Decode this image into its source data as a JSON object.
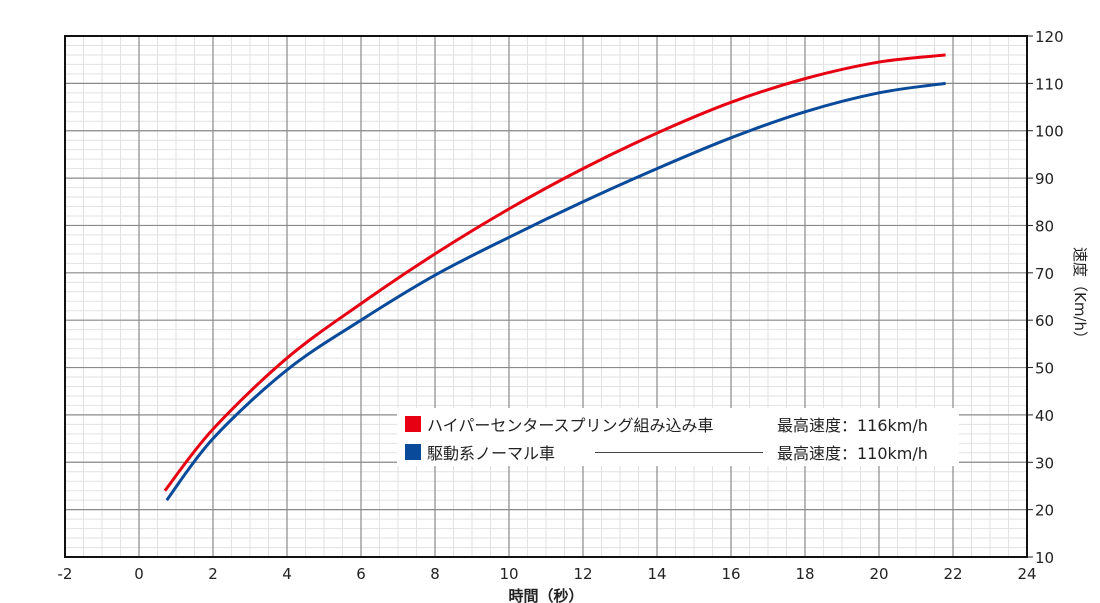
{
  "chart_data": {
    "type": "line",
    "xlabel": "時間（秒）",
    "ylabel": "速度（Km/h）",
    "xlim": [
      -2,
      24
    ],
    "ylim": [
      10,
      120
    ],
    "xticks": [
      -2,
      0,
      2,
      4,
      6,
      8,
      10,
      12,
      14,
      16,
      18,
      20,
      22,
      24
    ],
    "yticks": [
      10,
      20,
      30,
      40,
      50,
      60,
      70,
      80,
      90,
      100,
      110,
      120
    ],
    "grid": true,
    "legend_position": "bottom-right",
    "series": [
      {
        "name": "ハイパーセンタースプリング組み込み車",
        "note": "最高速度：116km/h",
        "color": "#e60012",
        "x": [
          0.7,
          2,
          4,
          6,
          8,
          10,
          12,
          14,
          16,
          18,
          20,
          21.8
        ],
        "y": [
          24,
          37,
          52,
          63.5,
          74,
          83.5,
          92,
          99.5,
          106,
          111,
          114.5,
          116
        ]
      },
      {
        "name": "駆動系ノーマル車",
        "note": "最高速度：110km/h",
        "color": "#0a4a9a",
        "x": [
          0.75,
          2,
          4,
          6,
          8,
          10,
          12,
          14,
          16,
          18,
          20,
          21.8
        ],
        "y": [
          22,
          35,
          49.5,
          60,
          69.5,
          77.5,
          85,
          92,
          98.5,
          104,
          108,
          110
        ]
      }
    ]
  }
}
